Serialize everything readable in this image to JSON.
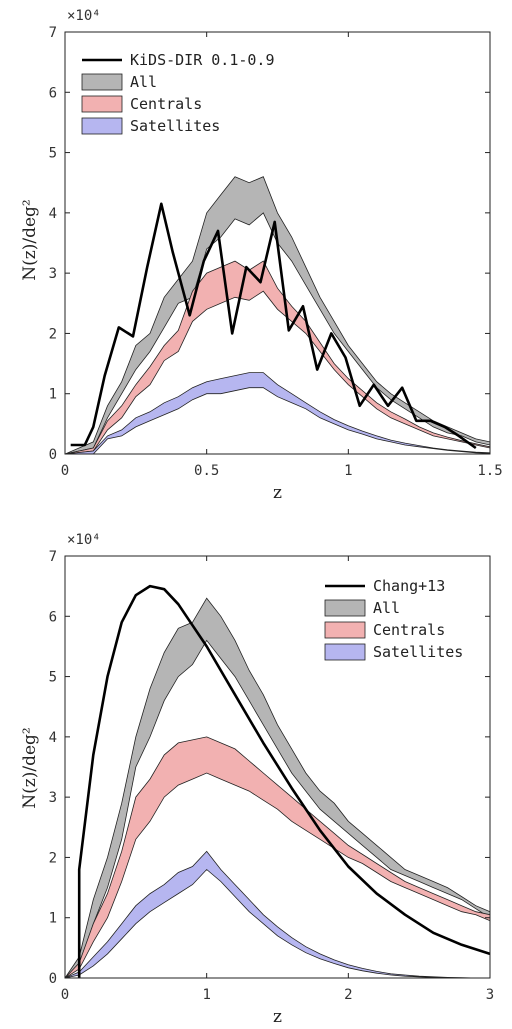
{
  "chart_data": [
    {
      "type": "area",
      "xlabel": "z",
      "ylabel": "N(z)/deg²",
      "y_multiplier": "×10⁴",
      "xlim": [
        0,
        1.5
      ],
      "ylim": [
        0,
        7
      ],
      "xticks": [
        "0",
        "0.5",
        "1",
        "1.5"
      ],
      "yticks": [
        "0",
        "1",
        "2",
        "3",
        "4",
        "5",
        "6",
        "7"
      ],
      "legend_position": "top-left",
      "colors": {
        "all": "#b5b5b5",
        "centrals": "#f2b1b1",
        "satellites": "#b6b6f0",
        "line": "#000000"
      },
      "line_series": {
        "name": "KiDS-DIR 0.1-0.9",
        "x": [
          0.02,
          0.07,
          0.1,
          0.14,
          0.19,
          0.24,
          0.29,
          0.34,
          0.38,
          0.44,
          0.49,
          0.54,
          0.59,
          0.64,
          0.69,
          0.74,
          0.79,
          0.84,
          0.89,
          0.94,
          0.99,
          1.04,
          1.09,
          1.14,
          1.19,
          1.24,
          1.29,
          1.34,
          1.39,
          1.45
        ],
        "y": [
          0.15,
          0.15,
          0.45,
          1.3,
          2.1,
          1.95,
          3.1,
          4.15,
          3.35,
          2.3,
          3.2,
          3.7,
          2.0,
          3.1,
          2.85,
          3.85,
          2.05,
          2.45,
          1.4,
          2.0,
          1.6,
          0.8,
          1.15,
          0.8,
          1.1,
          0.55,
          0.55,
          0.45,
          0.3,
          0.1
        ]
      },
      "bands": [
        {
          "name": "All",
          "x": [
            0,
            0.1,
            0.15,
            0.2,
            0.25,
            0.3,
            0.35,
            0.4,
            0.45,
            0.5,
            0.55,
            0.6,
            0.65,
            0.7,
            0.75,
            0.8,
            0.85,
            0.9,
            0.95,
            1.0,
            1.05,
            1.1,
            1.15,
            1.2,
            1.25,
            1.3,
            1.35,
            1.4,
            1.45,
            1.5
          ],
          "lower": [
            0.0,
            0.1,
            0.6,
            1.0,
            1.4,
            1.7,
            2.1,
            2.5,
            2.6,
            3.4,
            3.6,
            3.9,
            3.8,
            4.0,
            3.5,
            3.2,
            2.8,
            2.4,
            2.0,
            1.7,
            1.4,
            1.1,
            0.9,
            0.75,
            0.6,
            0.45,
            0.35,
            0.3,
            0.2,
            0.15
          ],
          "upper": [
            0.0,
            0.2,
            0.8,
            1.2,
            1.8,
            2.0,
            2.6,
            2.9,
            3.2,
            4.0,
            4.3,
            4.6,
            4.5,
            4.6,
            4.0,
            3.6,
            3.1,
            2.6,
            2.2,
            1.8,
            1.5,
            1.2,
            1.0,
            0.85,
            0.7,
            0.55,
            0.45,
            0.35,
            0.25,
            0.2
          ]
        },
        {
          "name": "Centrals",
          "x": [
            0,
            0.1,
            0.15,
            0.2,
            0.25,
            0.3,
            0.35,
            0.4,
            0.45,
            0.5,
            0.55,
            0.6,
            0.65,
            0.7,
            0.75,
            0.8,
            0.85,
            0.9,
            0.95,
            1.0,
            1.05,
            1.1,
            1.15,
            1.2,
            1.25,
            1.3,
            1.35,
            1.4,
            1.45,
            1.5
          ],
          "lower": [
            0.0,
            0.05,
            0.4,
            0.6,
            0.95,
            1.15,
            1.55,
            1.7,
            2.2,
            2.4,
            2.5,
            2.6,
            2.55,
            2.7,
            2.4,
            2.2,
            2.0,
            1.7,
            1.4,
            1.15,
            0.95,
            0.75,
            0.6,
            0.5,
            0.4,
            0.3,
            0.25,
            0.2,
            0.15,
            0.1
          ],
          "upper": [
            0.0,
            0.1,
            0.55,
            0.8,
            1.15,
            1.45,
            1.8,
            2.05,
            2.7,
            3.0,
            3.1,
            3.2,
            3.05,
            3.2,
            2.75,
            2.45,
            2.2,
            1.85,
            1.5,
            1.25,
            1.05,
            0.85,
            0.7,
            0.58,
            0.45,
            0.35,
            0.28,
            0.22,
            0.17,
            0.12
          ]
        },
        {
          "name": "Satellites",
          "x": [
            0,
            0.1,
            0.15,
            0.2,
            0.25,
            0.3,
            0.35,
            0.4,
            0.45,
            0.5,
            0.55,
            0.6,
            0.65,
            0.7,
            0.75,
            0.8,
            0.85,
            0.9,
            0.95,
            1.0,
            1.05,
            1.1,
            1.15,
            1.2,
            1.25,
            1.3,
            1.35,
            1.4,
            1.45,
            1.5
          ],
          "lower": [
            0.0,
            0.0,
            0.25,
            0.3,
            0.45,
            0.55,
            0.65,
            0.75,
            0.9,
            1.0,
            1.0,
            1.05,
            1.1,
            1.1,
            0.95,
            0.85,
            0.75,
            0.6,
            0.5,
            0.4,
            0.33,
            0.25,
            0.2,
            0.15,
            0.12,
            0.09,
            0.06,
            0.04,
            0.02,
            0.01
          ],
          "upper": [
            0.0,
            0.05,
            0.3,
            0.4,
            0.6,
            0.7,
            0.85,
            0.95,
            1.1,
            1.2,
            1.25,
            1.3,
            1.35,
            1.35,
            1.15,
            1.0,
            0.85,
            0.7,
            0.57,
            0.47,
            0.38,
            0.3,
            0.23,
            0.18,
            0.14,
            0.1,
            0.07,
            0.05,
            0.03,
            0.02
          ]
        }
      ]
    },
    {
      "type": "area",
      "xlabel": "z",
      "ylabel": "N(z)/deg²",
      "y_multiplier": "×10⁴",
      "xlim": [
        0,
        3
      ],
      "ylim": [
        0,
        7
      ],
      "xticks": [
        "0",
        "1",
        "2",
        "3"
      ],
      "yticks": [
        "0",
        "1",
        "2",
        "3",
        "4",
        "5",
        "6",
        "7"
      ],
      "legend_position": "top-right",
      "colors": {
        "all": "#b5b5b5",
        "centrals": "#f2b1b1",
        "satellites": "#b6b6f0",
        "line": "#000000"
      },
      "line_series": {
        "name": "Chang+13",
        "x": [
          0.1,
          0.1,
          0.2,
          0.3,
          0.4,
          0.5,
          0.6,
          0.7,
          0.8,
          0.9,
          1.0,
          1.2,
          1.4,
          1.6,
          1.8,
          2.0,
          2.2,
          2.4,
          2.6,
          2.8,
          3.0
        ],
        "y": [
          0.0,
          1.8,
          3.7,
          5.0,
          5.9,
          6.35,
          6.5,
          6.45,
          6.2,
          5.85,
          5.5,
          4.7,
          3.9,
          3.15,
          2.45,
          1.85,
          1.4,
          1.05,
          0.75,
          0.55,
          0.4
        ]
      },
      "bands": [
        {
          "name": "All",
          "x": [
            0,
            0.1,
            0.2,
            0.3,
            0.4,
            0.5,
            0.6,
            0.7,
            0.8,
            0.9,
            1.0,
            1.1,
            1.2,
            1.3,
            1.4,
            1.5,
            1.6,
            1.7,
            1.8,
            1.9,
            2.0,
            2.1,
            2.2,
            2.3,
            2.4,
            2.5,
            2.6,
            2.7,
            2.8,
            2.9,
            3.0
          ],
          "lower": [
            0.0,
            0.2,
            0.9,
            1.5,
            2.3,
            3.5,
            4.0,
            4.6,
            5.0,
            5.2,
            5.6,
            5.3,
            5.0,
            4.6,
            4.2,
            3.8,
            3.4,
            3.1,
            2.8,
            2.6,
            2.4,
            2.2,
            2.0,
            1.8,
            1.7,
            1.6,
            1.5,
            1.4,
            1.3,
            1.15,
            1.0
          ],
          "upper": [
            0.0,
            0.35,
            1.3,
            2.0,
            2.9,
            4.0,
            4.8,
            5.4,
            5.8,
            5.9,
            6.3,
            6.0,
            5.6,
            5.1,
            4.7,
            4.2,
            3.8,
            3.4,
            3.1,
            2.9,
            2.6,
            2.4,
            2.2,
            2.0,
            1.8,
            1.7,
            1.6,
            1.5,
            1.35,
            1.2,
            1.1
          ]
        },
        {
          "name": "Centrals",
          "x": [
            0,
            0.1,
            0.2,
            0.3,
            0.4,
            0.5,
            0.6,
            0.7,
            0.8,
            0.9,
            1.0,
            1.1,
            1.2,
            1.3,
            1.4,
            1.5,
            1.6,
            1.7,
            1.8,
            1.9,
            2.0,
            2.1,
            2.2,
            2.3,
            2.4,
            2.5,
            2.6,
            2.7,
            2.8,
            2.9,
            3.0
          ],
          "lower": [
            0.0,
            0.15,
            0.6,
            1.0,
            1.6,
            2.3,
            2.6,
            3.0,
            3.2,
            3.3,
            3.4,
            3.3,
            3.2,
            3.1,
            2.95,
            2.8,
            2.6,
            2.45,
            2.3,
            2.15,
            2.0,
            1.9,
            1.75,
            1.6,
            1.5,
            1.4,
            1.3,
            1.2,
            1.1,
            1.05,
            0.95
          ],
          "upper": [
            0.0,
            0.25,
            0.9,
            1.4,
            2.1,
            3.0,
            3.3,
            3.7,
            3.9,
            3.95,
            4.0,
            3.9,
            3.8,
            3.6,
            3.4,
            3.2,
            3.0,
            2.8,
            2.6,
            2.4,
            2.2,
            2.05,
            1.9,
            1.75,
            1.6,
            1.5,
            1.4,
            1.3,
            1.2,
            1.1,
            1.05
          ]
        },
        {
          "name": "Satellites",
          "x": [
            0,
            0.1,
            0.2,
            0.3,
            0.4,
            0.5,
            0.6,
            0.7,
            0.8,
            0.9,
            1.0,
            1.1,
            1.2,
            1.3,
            1.4,
            1.5,
            1.6,
            1.7,
            1.8,
            1.9,
            2.0,
            2.1,
            2.2,
            2.3,
            2.4,
            2.5,
            2.6,
            2.7,
            2.8,
            2.9,
            3.0
          ],
          "lower": [
            0.0,
            0.05,
            0.2,
            0.4,
            0.65,
            0.9,
            1.1,
            1.25,
            1.4,
            1.55,
            1.8,
            1.6,
            1.35,
            1.1,
            0.9,
            0.7,
            0.55,
            0.42,
            0.32,
            0.24,
            0.17,
            0.12,
            0.08,
            0.05,
            0.03,
            0.02,
            0.01,
            0.005,
            0.0,
            0.0,
            0.0
          ],
          "upper": [
            0.0,
            0.1,
            0.35,
            0.6,
            0.9,
            1.2,
            1.4,
            1.55,
            1.75,
            1.85,
            2.1,
            1.8,
            1.55,
            1.3,
            1.05,
            0.85,
            0.67,
            0.52,
            0.4,
            0.3,
            0.22,
            0.16,
            0.11,
            0.07,
            0.05,
            0.03,
            0.02,
            0.01,
            0.005,
            0.0,
            0.0
          ]
        }
      ]
    }
  ]
}
